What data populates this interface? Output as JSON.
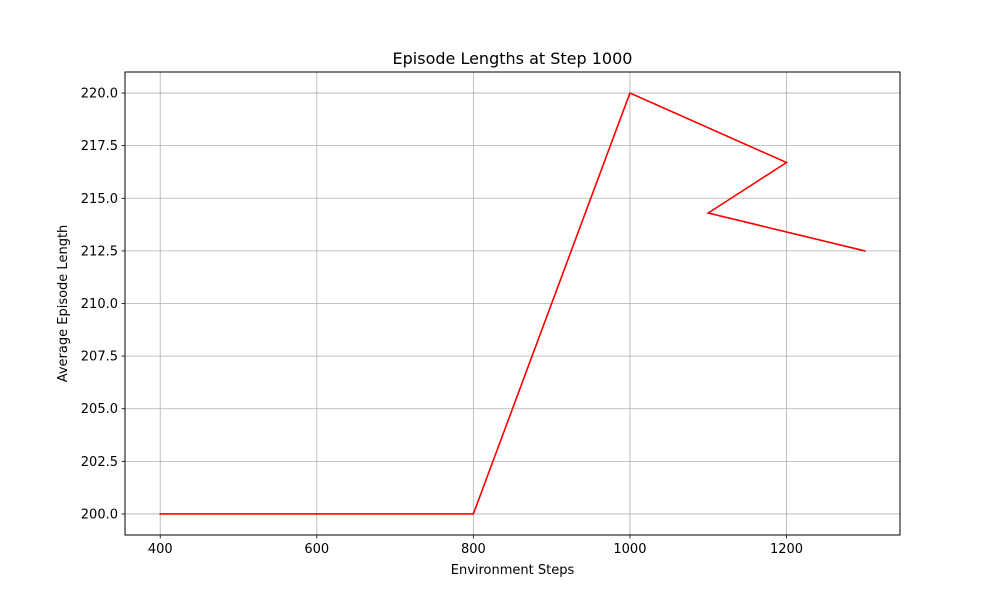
{
  "chart_data": {
    "type": "line",
    "title": "Episode Lengths at Step 1000",
    "xlabel": "Environment Steps",
    "ylabel": "Average Episode Length",
    "xlim": [
      355,
      1345
    ],
    "ylim": [
      199.0,
      221.0
    ],
    "x_ticks": [
      400,
      600,
      800,
      1000,
      1200
    ],
    "x_tick_labels": [
      "400",
      "600",
      "800",
      "1000",
      "1200"
    ],
    "y_ticks": [
      200.0,
      202.5,
      205.0,
      207.5,
      210.0,
      212.5,
      215.0,
      217.5,
      220.0
    ],
    "y_tick_labels": [
      "200.0",
      "202.5",
      "205.0",
      "207.5",
      "210.0",
      "212.5",
      "215.0",
      "217.5",
      "220.0"
    ],
    "grid": true,
    "series": [
      {
        "color": "#ff0000",
        "x": [
          400,
          600,
          800,
          1000,
          1200,
          1100,
          1300
        ],
        "y": [
          200.0,
          200.0,
          200.0,
          220.0,
          216.7,
          214.3,
          212.5
        ]
      }
    ]
  }
}
